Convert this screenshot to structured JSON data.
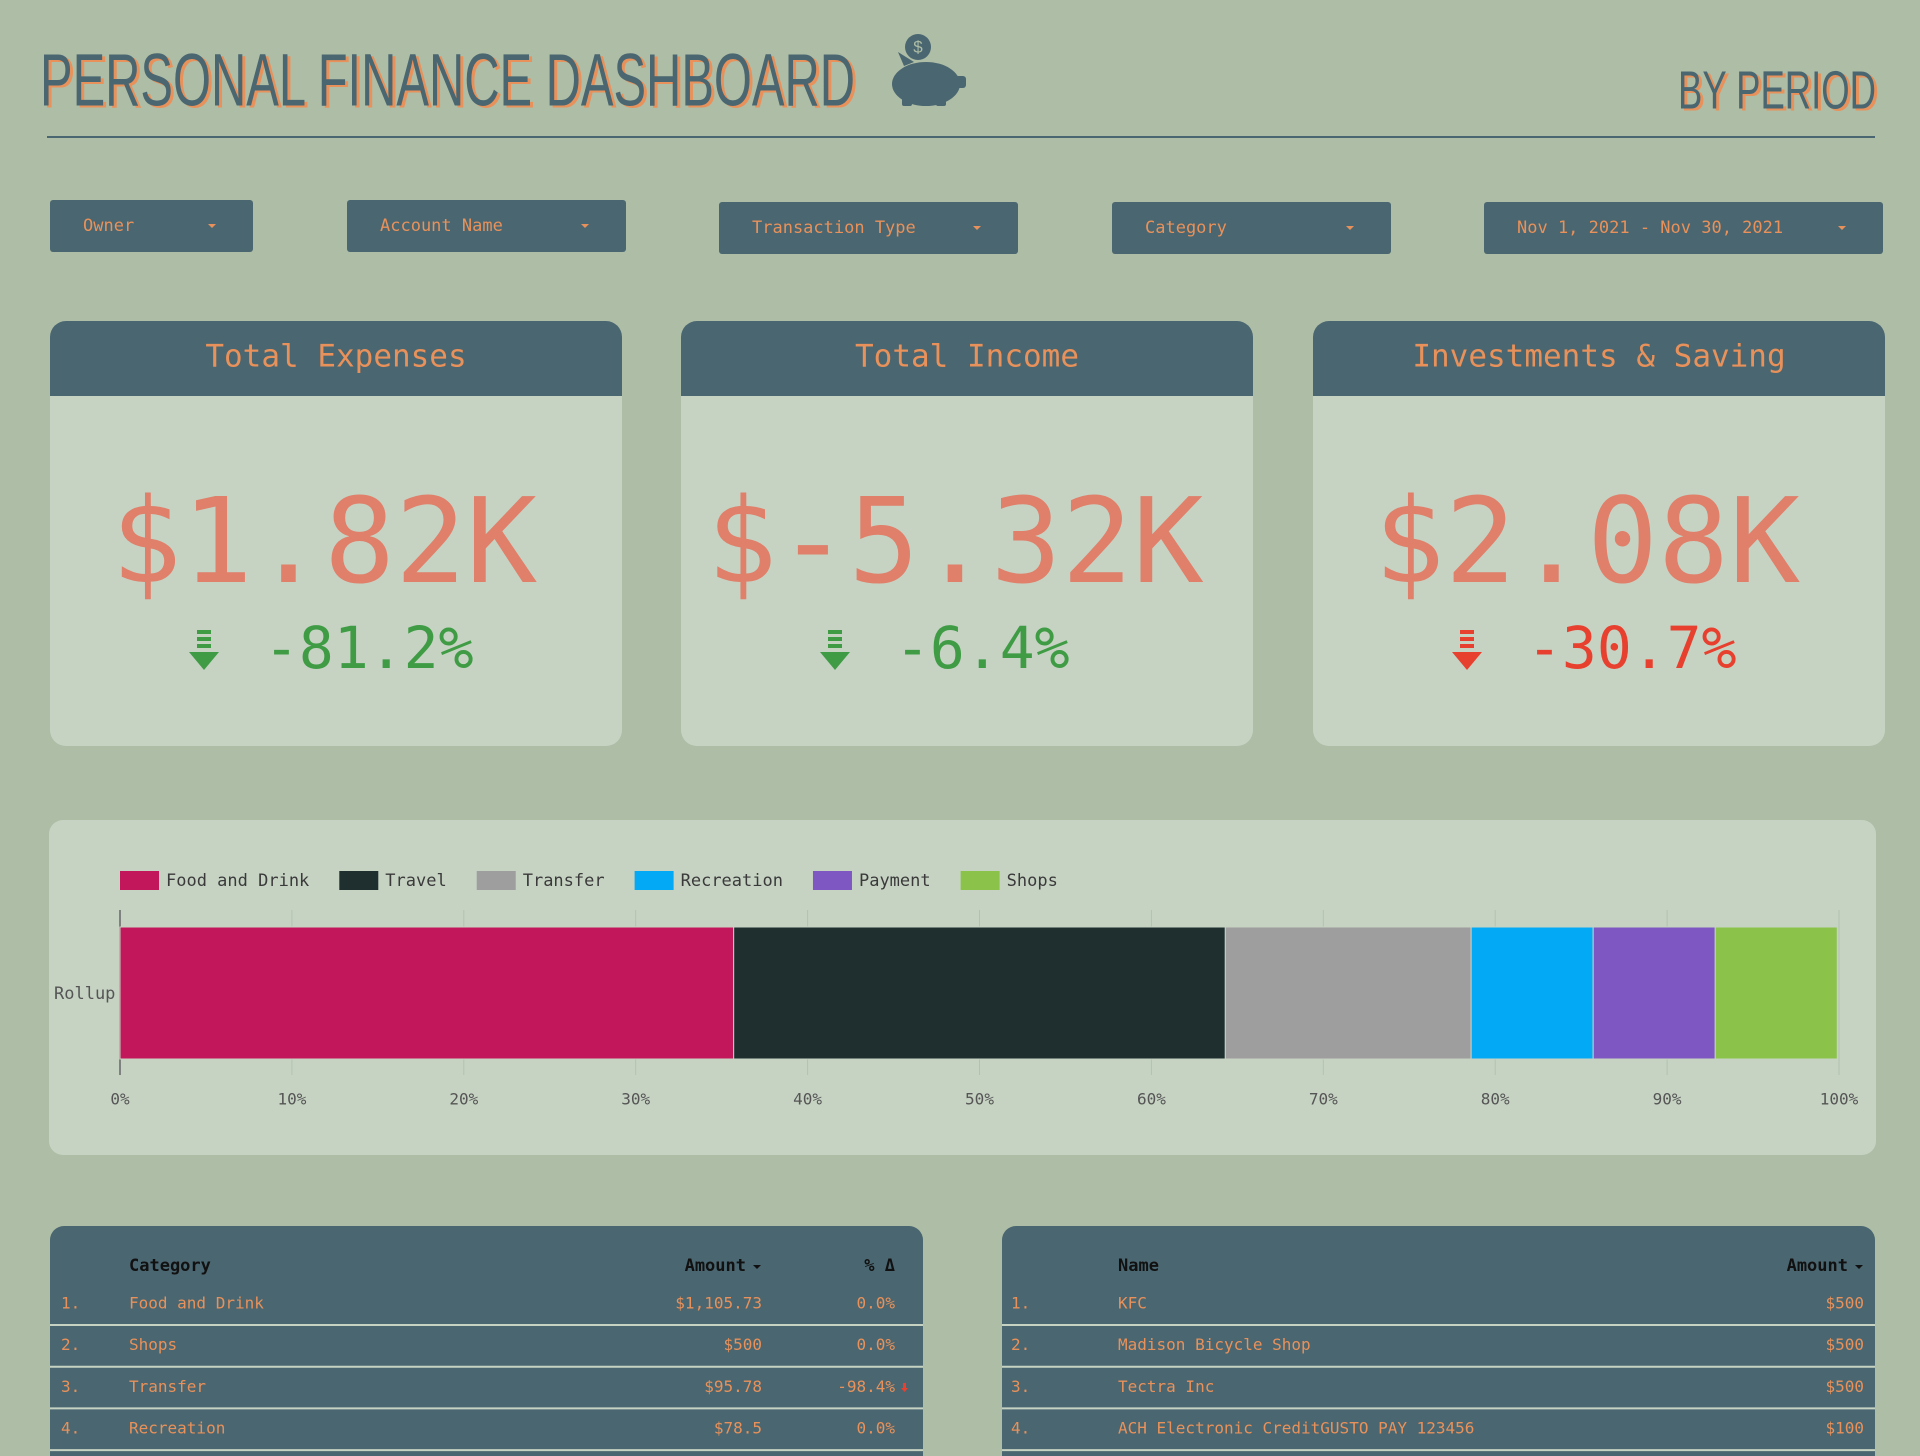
{
  "header": {
    "title": "PERSONAL FINANCE DASHBOARD",
    "subtitle": "BY PERIOD"
  },
  "filters": [
    "Owner",
    "Account Name",
    "Transaction Type",
    "Category",
    "Nov 1, 2021 - Nov 30, 2021"
  ],
  "kpis": [
    {
      "title": "Total Expenses",
      "value": "$1.82K",
      "change": "-81.2%",
      "color": "#3f9c45"
    },
    {
      "title": "Total Income",
      "value": "$-5.32K",
      "change": "-6.4%",
      "color": "#3f9c45"
    },
    {
      "title": "Investments & Saving",
      "value": "$2.08K",
      "change": "-30.7%",
      "color": "#e8402f"
    }
  ],
  "chart_data": {
    "type": "stacked_bar",
    "orientation": "horizontal",
    "categories": [
      "Rollup"
    ],
    "series": [
      {
        "name": "Food and Drink",
        "color": "#c2185b",
        "values": [
          35.7
        ]
      },
      {
        "name": "Travel",
        "color": "#1f2f30",
        "values": [
          28.6
        ]
      },
      {
        "name": "Transfer",
        "color": "#9e9e9e",
        "values": [
          14.3
        ]
      },
      {
        "name": "Recreation",
        "color": "#03a9f4",
        "values": [
          7.1
        ]
      },
      {
        "name": "Payment",
        "color": "#7e57c2",
        "values": [
          7.1
        ]
      },
      {
        "name": "Shops",
        "color": "#8bc34a",
        "values": [
          7.1
        ]
      }
    ],
    "xlim": [
      0,
      100
    ],
    "xticks": [
      {
        "value": 0,
        "label": "0%"
      },
      {
        "value": 10,
        "label": "10%"
      },
      {
        "value": 20,
        "label": "20%"
      },
      {
        "value": 30,
        "label": "30%"
      },
      {
        "value": 40,
        "label": "40%"
      },
      {
        "value": 50,
        "label": "50%"
      },
      {
        "value": 60,
        "label": "60%"
      },
      {
        "value": 70,
        "label": "70%"
      },
      {
        "value": 80,
        "label": "80%"
      },
      {
        "value": 90,
        "label": "90%"
      },
      {
        "value": 100,
        "label": "100%"
      }
    ],
    "grid": true,
    "legend": "top"
  },
  "tables": [
    {
      "columns": [
        "Category",
        "Amount",
        "% Δ"
      ],
      "rows": [
        [
          "1.",
          "Food and Drink",
          "$1,105.73",
          "0.0%"
        ],
        [
          "2.",
          "Shops",
          "$500",
          "0.0%"
        ],
        [
          "3.",
          "Transfer",
          "$95.78",
          "-98.4%"
        ],
        [
          "4.",
          "Recreation",
          "$78.5",
          "0.0%"
        ]
      ]
    },
    {
      "columns": [
        "Name",
        "Amount"
      ],
      "rows": [
        [
          "1.",
          "KFC",
          "$500"
        ],
        [
          "2.",
          "Madison Bicycle Shop",
          "$500"
        ],
        [
          "3.",
          "Tectra Inc",
          "$500"
        ],
        [
          "4.",
          "ACH Electronic CreditGUSTO PAY 123456",
          "$100"
        ]
      ]
    }
  ]
}
